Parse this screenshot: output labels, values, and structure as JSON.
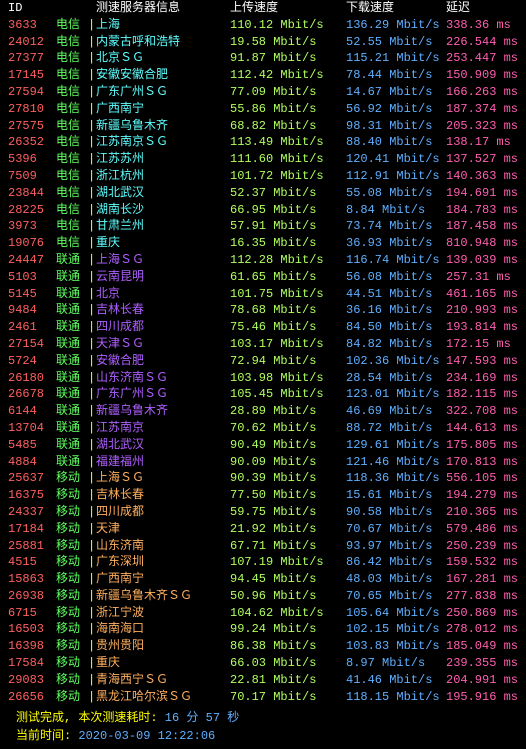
{
  "headers": {
    "id": "ID",
    "server": "测速服务器信息",
    "upload": "上传速度",
    "download": "下载速度",
    "latency": "延迟"
  },
  "colors": {
    "background": "#000000",
    "header": "#ffffff",
    "red": "#ff5f5f",
    "yellow": "#ffff00",
    "greenBright": "#afff5f",
    "green": "#5fff5f",
    "cyan": "#5fffff",
    "purple": "#af5fff",
    "orange": "#ffaf5f",
    "pink": "#ff5faf",
    "blue": "#5fafff"
  },
  "rows": [
    {
      "id": "3633",
      "isp": "电信",
      "server": "上海",
      "upload": "110.12 Mbit/s",
      "download": "136.29 Mbit/s",
      "latency": "338.36 ms"
    },
    {
      "id": "24012",
      "isp": "电信",
      "server": "内蒙古呼和浩特",
      "upload": "19.58 Mbit/s",
      "download": "52.55 Mbit/s",
      "latency": "226.544 ms"
    },
    {
      "id": "27377",
      "isp": "电信",
      "server": "北京ＳＧ",
      "upload": "91.87 Mbit/s",
      "download": "115.21 Mbit/s",
      "latency": "253.447 ms"
    },
    {
      "id": "17145",
      "isp": "电信",
      "server": "安徽安徽合肥",
      "upload": "112.42 Mbit/s",
      "download": "78.44 Mbit/s",
      "latency": "150.909 ms"
    },
    {
      "id": "27594",
      "isp": "电信",
      "server": "广东广州ＳＧ",
      "upload": "77.09 Mbit/s",
      "download": "14.67 Mbit/s",
      "latency": "166.263 ms"
    },
    {
      "id": "27810",
      "isp": "电信",
      "server": "广西南宁",
      "upload": "55.86 Mbit/s",
      "download": "56.92 Mbit/s",
      "latency": "187.374 ms"
    },
    {
      "id": "27575",
      "isp": "电信",
      "server": "新疆乌鲁木齐",
      "upload": "68.82 Mbit/s",
      "download": "98.31 Mbit/s",
      "latency": "205.323 ms"
    },
    {
      "id": "26352",
      "isp": "电信",
      "server": "江苏南京ＳＧ",
      "upload": "113.49 Mbit/s",
      "download": "88.40 Mbit/s",
      "latency": "138.17 ms"
    },
    {
      "id": "5396",
      "isp": "电信",
      "server": "江苏苏州",
      "upload": "111.60 Mbit/s",
      "download": "120.41 Mbit/s",
      "latency": "137.527 ms"
    },
    {
      "id": "7509",
      "isp": "电信",
      "server": "浙江杭州",
      "upload": "101.72 Mbit/s",
      "download": "112.91 Mbit/s",
      "latency": "140.363 ms"
    },
    {
      "id": "23844",
      "isp": "电信",
      "server": "湖北武汉",
      "upload": "52.37 Mbit/s",
      "download": "55.08 Mbit/s",
      "latency": "194.691 ms"
    },
    {
      "id": "28225",
      "isp": "电信",
      "server": "湖南长沙",
      "upload": "66.95 Mbit/s",
      "download": "8.84 Mbit/s",
      "latency": "184.783 ms"
    },
    {
      "id": "3973",
      "isp": "电信",
      "server": "甘肃兰州",
      "upload": "57.91 Mbit/s",
      "download": "73.74 Mbit/s",
      "latency": "187.458 ms"
    },
    {
      "id": "19076",
      "isp": "电信",
      "server": "重庆",
      "upload": "16.35 Mbit/s",
      "download": "36.93 Mbit/s",
      "latency": "810.948 ms"
    },
    {
      "id": "24447",
      "isp": "联通",
      "server": "上海ＳＧ",
      "upload": "112.28 Mbit/s",
      "download": "116.74 Mbit/s",
      "latency": "139.039 ms"
    },
    {
      "id": "5103",
      "isp": "联通",
      "server": "云南昆明",
      "upload": "61.65 Mbit/s",
      "download": "56.08 Mbit/s",
      "latency": "257.31 ms"
    },
    {
      "id": "5145",
      "isp": "联通",
      "server": "北京",
      "upload": "101.75 Mbit/s",
      "download": "44.51 Mbit/s",
      "latency": "461.165 ms"
    },
    {
      "id": "9484",
      "isp": "联通",
      "server": "吉林长春",
      "upload": "78.68 Mbit/s",
      "download": "36.16 Mbit/s",
      "latency": "210.993 ms"
    },
    {
      "id": "2461",
      "isp": "联通",
      "server": "四川成都",
      "upload": "75.46 Mbit/s",
      "download": "84.50 Mbit/s",
      "latency": "193.814 ms"
    },
    {
      "id": "27154",
      "isp": "联通",
      "server": "天津ＳＧ",
      "upload": "103.17 Mbit/s",
      "download": "84.82 Mbit/s",
      "latency": "172.15 ms"
    },
    {
      "id": "5724",
      "isp": "联通",
      "server": "安徽合肥",
      "upload": "72.94 Mbit/s",
      "download": "102.36 Mbit/s",
      "latency": "147.593 ms"
    },
    {
      "id": "26180",
      "isp": "联通",
      "server": "山东济南ＳＧ",
      "upload": "103.98 Mbit/s",
      "download": "28.54 Mbit/s",
      "latency": "234.169 ms"
    },
    {
      "id": "26678",
      "isp": "联通",
      "server": "广东广州ＳＧ",
      "upload": "105.45 Mbit/s",
      "download": "123.01 Mbit/s",
      "latency": "182.115 ms"
    },
    {
      "id": "6144",
      "isp": "联通",
      "server": "新疆乌鲁木齐",
      "upload": "28.89 Mbit/s",
      "download": "46.69 Mbit/s",
      "latency": "322.708 ms"
    },
    {
      "id": "13704",
      "isp": "联通",
      "server": "江苏南京",
      "upload": "70.62 Mbit/s",
      "download": "88.72 Mbit/s",
      "latency": "144.613 ms"
    },
    {
      "id": "5485",
      "isp": "联通",
      "server": "湖北武汉",
      "upload": "90.49 Mbit/s",
      "download": "129.61 Mbit/s",
      "latency": "175.805 ms"
    },
    {
      "id": "4884",
      "isp": "联通",
      "server": "福建福州",
      "upload": "90.09 Mbit/s",
      "download": "121.46 Mbit/s",
      "latency": "170.813 ms"
    },
    {
      "id": "25637",
      "isp": "移动",
      "server": "上海ＳＧ",
      "upload": "90.39 Mbit/s",
      "download": "118.36 Mbit/s",
      "latency": "556.105 ms"
    },
    {
      "id": "16375",
      "isp": "移动",
      "server": "吉林长春",
      "upload": "77.50 Mbit/s",
      "download": "15.61 Mbit/s",
      "latency": "194.279 ms"
    },
    {
      "id": "24337",
      "isp": "移动",
      "server": "四川成都",
      "upload": "59.75 Mbit/s",
      "download": "90.58 Mbit/s",
      "latency": "210.365 ms"
    },
    {
      "id": "17184",
      "isp": "移动",
      "server": "天津",
      "upload": "21.92 Mbit/s",
      "download": "70.67 Mbit/s",
      "latency": "579.486 ms"
    },
    {
      "id": "25881",
      "isp": "移动",
      "server": "山东济南",
      "upload": "67.71 Mbit/s",
      "download": "93.97 Mbit/s",
      "latency": "250.239 ms"
    },
    {
      "id": "4515",
      "isp": "移动",
      "server": "广东深圳",
      "upload": "107.19 Mbit/s",
      "download": "86.42 Mbit/s",
      "latency": "159.532 ms"
    },
    {
      "id": "15863",
      "isp": "移动",
      "server": "广西南宁",
      "upload": "94.45 Mbit/s",
      "download": "48.03 Mbit/s",
      "latency": "167.281 ms"
    },
    {
      "id": "26938",
      "isp": "移动",
      "server": "新疆乌鲁木齐ＳＧ",
      "upload": "50.96 Mbit/s",
      "download": "70.65 Mbit/s",
      "latency": "277.838 ms"
    },
    {
      "id": "6715",
      "isp": "移动",
      "server": "浙江宁波",
      "upload": "104.62 Mbit/s",
      "download": "105.64 Mbit/s",
      "latency": "250.869 ms"
    },
    {
      "id": "16503",
      "isp": "移动",
      "server": "海南海口",
      "upload": "99.24 Mbit/s",
      "download": "102.15 Mbit/s",
      "latency": "278.012 ms"
    },
    {
      "id": "16398",
      "isp": "移动",
      "server": "贵州贵阳",
      "upload": "86.38 Mbit/s",
      "download": "103.83 Mbit/s",
      "latency": "185.049 ms"
    },
    {
      "id": "17584",
      "isp": "移动",
      "server": "重庆",
      "upload": "66.03 Mbit/s",
      "download": "8.97 Mbit/s",
      "latency": "239.355 ms"
    },
    {
      "id": "29083",
      "isp": "移动",
      "server": "青海西宁ＳＧ",
      "upload": "22.81 Mbit/s",
      "download": "41.46 Mbit/s",
      "latency": "204.991 ms"
    },
    {
      "id": "26656",
      "isp": "移动",
      "server": "黑龙江哈尔滨ＳＧ",
      "upload": "70.17 Mbit/s",
      "download": "118.15 Mbit/s",
      "latency": "195.916 ms"
    }
  ],
  "footer": {
    "line1_label": " 测试完成, 本次测速耗时:",
    "line1_value": " 16 分 57 秒",
    "line2_label": " 当前时间: ",
    "line2_value": "2020-03-09 12:22:06"
  }
}
